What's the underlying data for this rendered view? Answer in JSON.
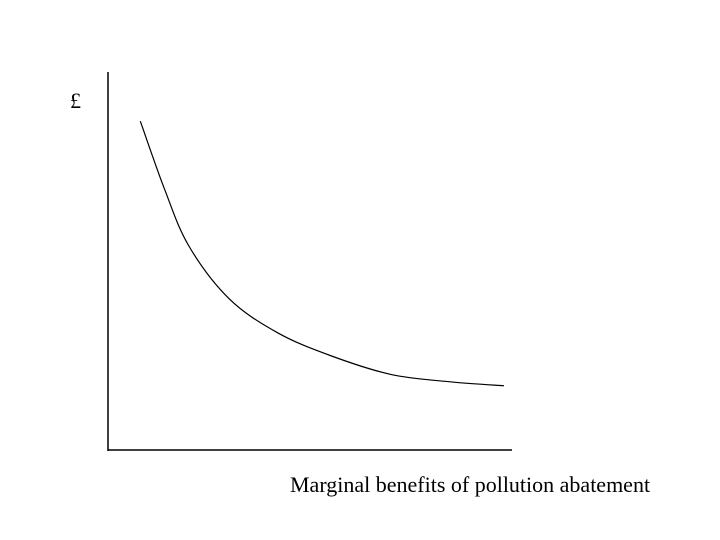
{
  "chart_data": {
    "type": "line",
    "title": "",
    "xlabel": "Marginal benefits of pollution abatement",
    "ylabel": "£",
    "grid": false,
    "legend": "none",
    "xlim": [
      0,
      100
    ],
    "ylim": [
      0,
      100
    ],
    "line_color": "#000000",
    "series": [
      {
        "values": [
          {
            "x": 8,
            "y": 87
          },
          {
            "x": 14,
            "y": 69
          },
          {
            "x": 20,
            "y": 54
          },
          {
            "x": 30,
            "y": 40
          },
          {
            "x": 42,
            "y": 31
          },
          {
            "x": 55,
            "y": 25
          },
          {
            "x": 70,
            "y": 20
          },
          {
            "x": 85,
            "y": 18
          },
          {
            "x": 98,
            "y": 17
          }
        ]
      }
    ]
  }
}
